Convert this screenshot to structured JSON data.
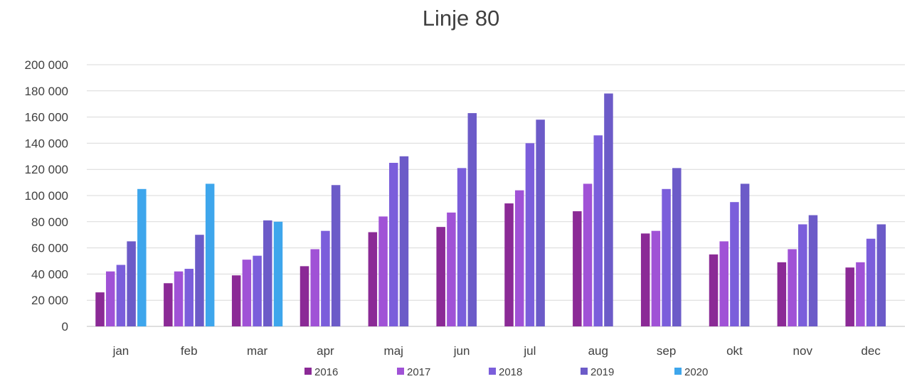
{
  "chart_data": {
    "type": "bar",
    "title": "Linje 80",
    "categories": [
      "jan",
      "feb",
      "mar",
      "apr",
      "maj",
      "jun",
      "jul",
      "aug",
      "sep",
      "okt",
      "nov",
      "dec"
    ],
    "series": [
      {
        "name": "2016",
        "color": "#8B2A96",
        "values": [
          26000,
          33000,
          39000,
          46000,
          72000,
          76000,
          94000,
          88000,
          71000,
          55000,
          49000,
          45000
        ]
      },
      {
        "name": "2017",
        "color": "#A052D6",
        "values": [
          42000,
          42000,
          51000,
          59000,
          84000,
          87000,
          104000,
          109000,
          73000,
          65000,
          59000,
          49000
        ]
      },
      {
        "name": "2018",
        "color": "#7B5EDB",
        "values": [
          47000,
          44000,
          54000,
          73000,
          125000,
          121000,
          140000,
          146000,
          105000,
          95000,
          78000,
          67000
        ]
      },
      {
        "name": "2019",
        "color": "#6C5BC8",
        "values": [
          65000,
          70000,
          81000,
          108000,
          130000,
          163000,
          158000,
          178000,
          121000,
          109000,
          85000,
          78000
        ]
      },
      {
        "name": "2020",
        "color": "#3EA6EC",
        "values": [
          105000,
          109000,
          80000,
          null,
          null,
          null,
          null,
          null,
          null,
          null,
          null,
          null
        ]
      }
    ],
    "ylim": [
      0,
      200000
    ],
    "yticks": [
      0,
      20000,
      40000,
      60000,
      80000,
      100000,
      120000,
      140000,
      160000,
      180000,
      200000
    ],
    "ytick_labels": [
      "0",
      "20 000",
      "40 000",
      "60 000",
      "80 000",
      "100 000",
      "120 000",
      "140 000",
      "160 000",
      "180 000",
      "200 000"
    ],
    "grid": true,
    "legend_position": "bottom",
    "xlabel": "",
    "ylabel": ""
  }
}
